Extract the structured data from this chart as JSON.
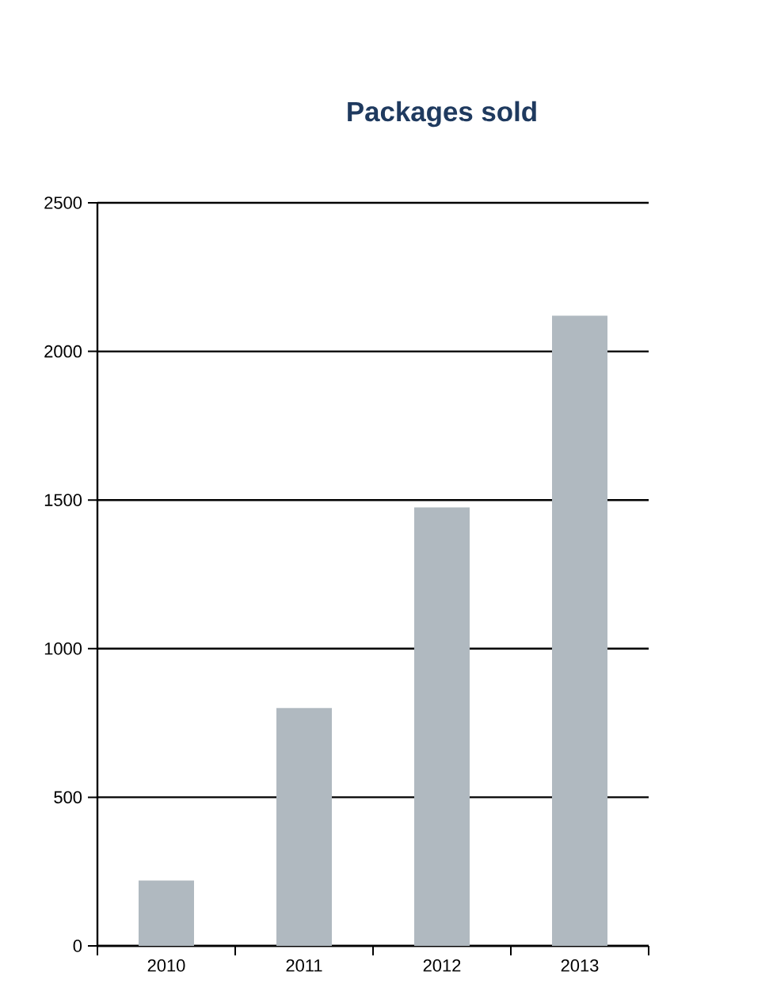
{
  "chart_data": {
    "type": "bar",
    "title": "Packages sold",
    "categories": [
      "2010",
      "2011",
      "2012",
      "2013"
    ],
    "values": [
      220,
      800,
      1475,
      2120
    ],
    "color": "#b0b9c0",
    "ylim": [
      0,
      2500
    ],
    "yticks": [
      0,
      500,
      1000,
      1500,
      2000,
      2500
    ],
    "grid": "y"
  }
}
